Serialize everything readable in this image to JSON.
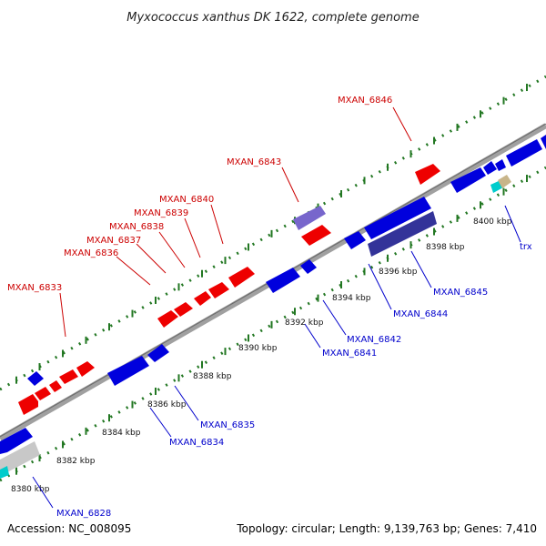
{
  "title": "Myxococcus xanthus DK 1622, complete genome",
  "footer": {
    "accession": "Accession: NC_008095",
    "summary": "Topology: circular; Length: 9,139,763 bp; Genes: 7,410"
  },
  "colors": {
    "forward": "#ee0000",
    "reverse": "#0000dd",
    "backbone": "#909090",
    "dots": "#227722",
    "label_forward": "#cc0000",
    "label_reverse": "#0000cc"
  },
  "tick_labels": [
    "8380 kbp",
    "8382 kbp",
    "8384 kbp",
    "8386 kbp",
    "8388 kbp",
    "8390 kbp",
    "8392 kbp",
    "8394 kbp",
    "8396 kbp",
    "8398 kbp",
    "8400 kbp"
  ],
  "labels_forward": [
    "MXAN_6833",
    "MXAN_6836",
    "MXAN_6837",
    "MXAN_6838",
    "MXAN_6839",
    "MXAN_6840",
    "MXAN_6843",
    "MXAN_6846"
  ],
  "labels_reverse": [
    "MXAN_6828",
    "MXAN_6834",
    "MXAN_6835",
    "MXAN_6841",
    "MXAN_6842",
    "MXAN_6844",
    "MXAN_6845",
    "trx"
  ]
}
